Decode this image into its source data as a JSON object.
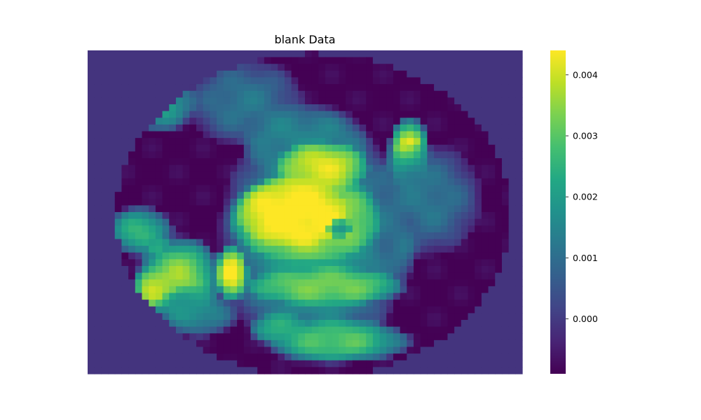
{
  "chart_data": {
    "type": "heatmap",
    "title": "blank Data",
    "colormap": "viridis",
    "color_range": [
      -0.0009,
      0.0044
    ],
    "colorbar_ticks": [
      0.0,
      0.001,
      0.002,
      0.003,
      0.004
    ],
    "colorbar_tick_labels": [
      "0.000",
      "0.001",
      "0.002",
      "0.003",
      "0.004"
    ],
    "grid": false,
    "outside_value": -0.0001,
    "blobs": [
      {
        "cx": 0.52,
        "cy": 0.51,
        "rx": 0.455,
        "ry": 0.5,
        "v": -0.0009
      },
      {
        "cx": 0.36,
        "cy": 0.16,
        "rx": 0.14,
        "ry": 0.14,
        "v": 0.0012
      },
      {
        "cx": 0.16,
        "cy": 0.16,
        "rx": 0.09,
        "ry": 0.1,
        "v": 0.0024
      },
      {
        "cx": 0.12,
        "cy": 0.56,
        "rx": 0.08,
        "ry": 0.08,
        "v": 0.0026
      },
      {
        "cx": 0.21,
        "cy": 0.7,
        "rx": 0.1,
        "ry": 0.13,
        "v": 0.0036
      },
      {
        "cx": 0.15,
        "cy": 0.74,
        "rx": 0.05,
        "ry": 0.07,
        "v": 0.0038
      },
      {
        "cx": 0.25,
        "cy": 0.81,
        "rx": 0.1,
        "ry": 0.08,
        "v": 0.0018
      },
      {
        "cx": 0.52,
        "cy": 0.58,
        "rx": 0.22,
        "ry": 0.4,
        "v": 0.0022
      },
      {
        "cx": 0.5,
        "cy": 0.28,
        "rx": 0.15,
        "ry": 0.12,
        "v": 0.0015
      },
      {
        "cx": 0.5,
        "cy": 0.52,
        "rx": 0.18,
        "ry": 0.14,
        "v": 0.004
      },
      {
        "cx": 0.47,
        "cy": 0.5,
        "rx": 0.13,
        "ry": 0.11,
        "v": 0.0046
      },
      {
        "cx": 0.54,
        "cy": 0.36,
        "rx": 0.11,
        "ry": 0.08,
        "v": 0.0042
      },
      {
        "cx": 0.74,
        "cy": 0.32,
        "rx": 0.05,
        "ry": 0.12,
        "v": 0.0044
      },
      {
        "cx": 0.78,
        "cy": 0.46,
        "rx": 0.13,
        "ry": 0.18,
        "v": 0.0012
      },
      {
        "cx": 0.55,
        "cy": 0.73,
        "rx": 0.19,
        "ry": 0.06,
        "v": 0.0033
      },
      {
        "cx": 0.33,
        "cy": 0.69,
        "rx": 0.04,
        "ry": 0.09,
        "v": 0.0045
      },
      {
        "cx": 0.58,
        "cy": 0.9,
        "rx": 0.17,
        "ry": 0.07,
        "v": 0.003
      },
      {
        "cx": 0.44,
        "cy": 0.86,
        "rx": 0.07,
        "ry": 0.05,
        "v": 0.0024
      },
      {
        "cx": 0.58,
        "cy": 0.55,
        "rx": 0.03,
        "ry": 0.03,
        "v": 0.0018
      },
      {
        "cx": 0.72,
        "cy": 0.62,
        "rx": 0.04,
        "ry": 0.1,
        "v": 0.0011
      }
    ]
  }
}
